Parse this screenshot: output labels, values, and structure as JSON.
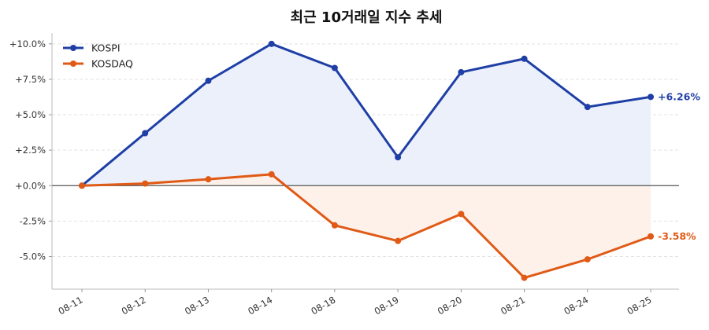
{
  "chart_data": {
    "type": "line",
    "title": "최근 10거래일 지수 추세",
    "xlabel": "",
    "ylabel": "",
    "categories": [
      "08-11",
      "08-12",
      "08-13",
      "08-14",
      "08-18",
      "08-19",
      "08-20",
      "08-21",
      "08-24",
      "08-25"
    ],
    "series": [
      {
        "name": "KOSPI",
        "color": "#1f3fa6",
        "fill": "#e9eef9",
        "values": [
          0.0,
          3.7,
          7.4,
          10.0,
          8.3,
          2.0,
          8.0,
          8.95,
          5.55,
          6.26
        ],
        "end_label": "+6.26%"
      },
      {
        "name": "KOSDAQ",
        "color": "#e05a16",
        "fill": "#fdf0e8",
        "values": [
          0.0,
          0.15,
          0.45,
          0.8,
          -2.8,
          -3.9,
          -2.0,
          -6.5,
          -5.2,
          -3.58
        ],
        "end_label": "-3.58%"
      }
    ],
    "ylim": [
      -7.3,
      10.6
    ],
    "yticks": [
      10.0,
      7.5,
      5.0,
      2.5,
      0.0,
      -2.5,
      -5.0
    ],
    "ytick_labels": [
      "+10.0%",
      "+7.5%",
      "+5.0%",
      "+2.5%",
      "+0.0%",
      "-2.5%",
      "-5.0%"
    ],
    "grid": true,
    "zero_line": true,
    "legend_position": "top-left"
  }
}
